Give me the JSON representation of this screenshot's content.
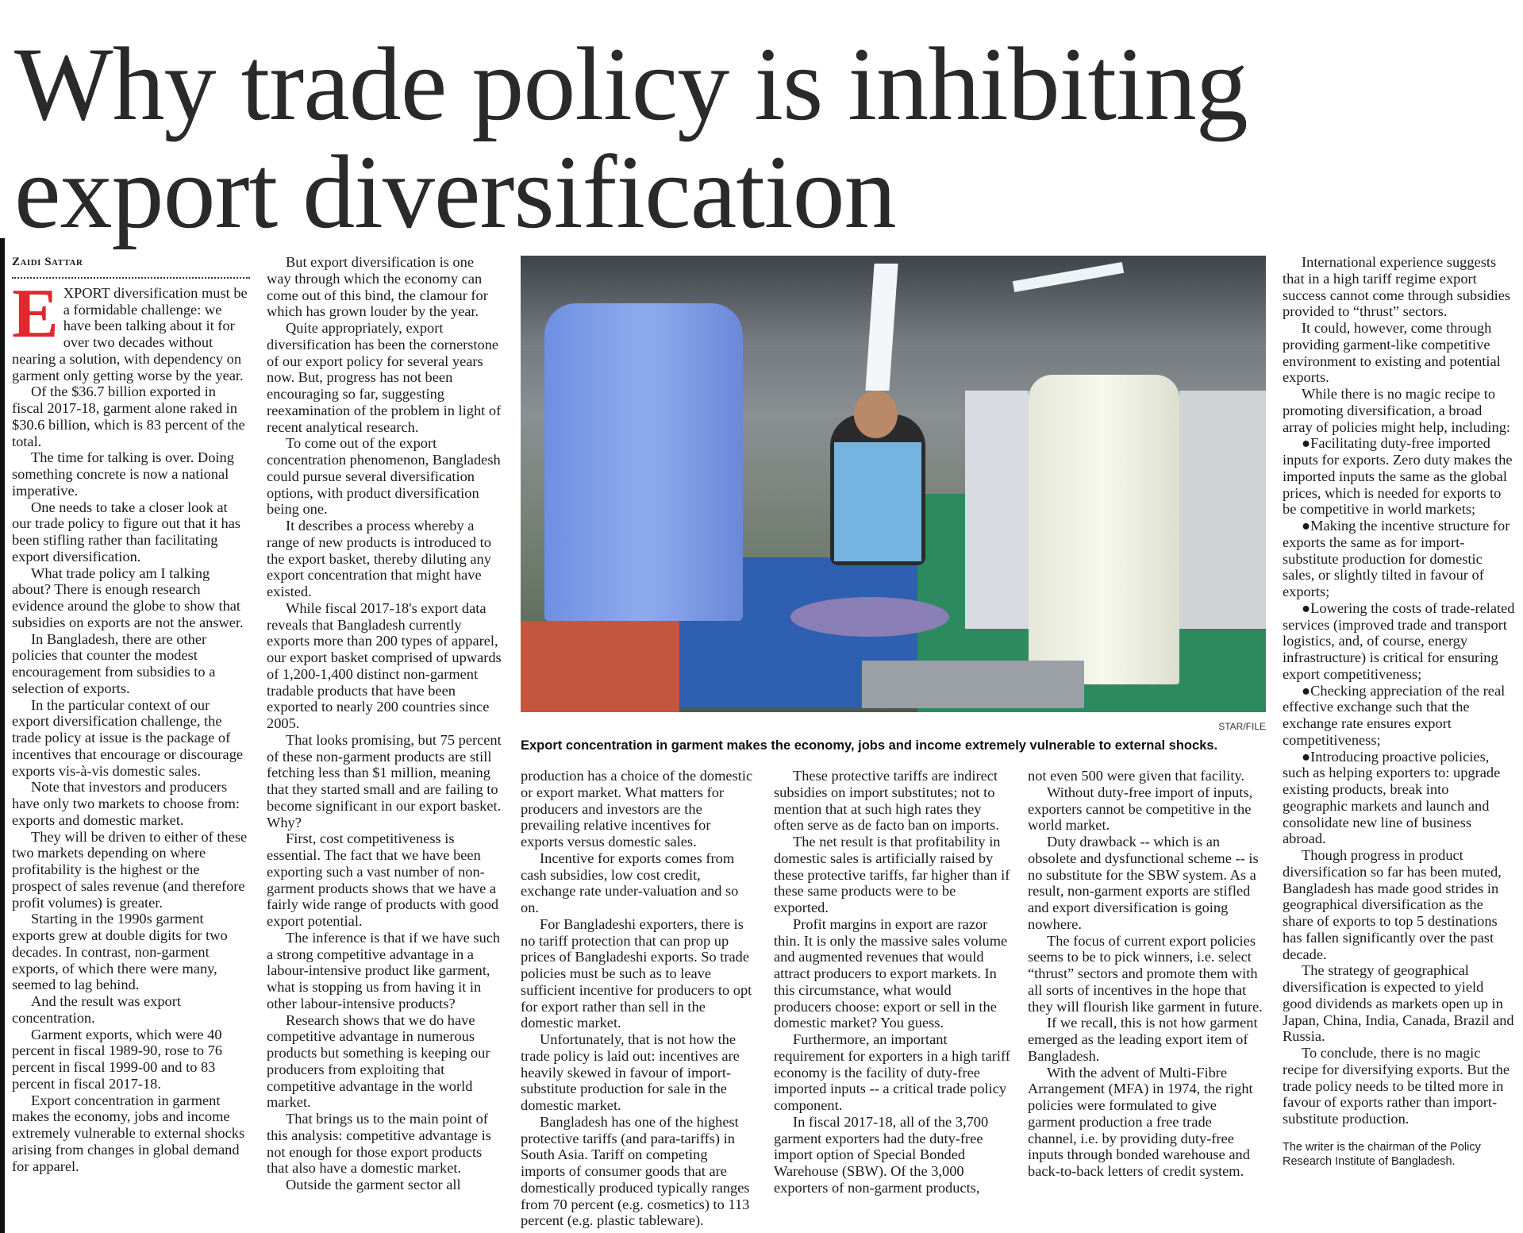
{
  "headline": [
    "Why trade policy is inhibiting",
    "export diversification"
  ],
  "byline": "Zaidi Sattar",
  "dropcap": "E",
  "photo": {
    "credit": "STAR/FILE",
    "caption": "Export concentration in garment makes the economy, jobs and income extremely vulnerable to external shocks."
  },
  "columns": [
    {
      "paragraphs": [
        "XPORT diversification must be a formidable challenge: we have been talking about it for over two decades without nearing a solution, with dependency on garment only getting worse by the year.",
        "Of the $36.7 billion exported in fiscal 2017-18, garment alone raked in $30.6 billion, which is 83 percent of the total.",
        "The time for talking is over. Doing something concrete is now a national imperative.",
        "One needs to take a closer look at our trade policy to figure out that it has been stifling rather than facilitating export diversification.",
        "What trade policy am I talking about? There is enough research evidence around the globe to show that subsidies on exports are not the answer.",
        "In Bangladesh, there are other policies that counter the modest encouragement from subsidies to a selection of exports.",
        "In the particular context of our export diversification challenge, the trade policy at issue is the package of incentives that encourage or discourage exports vis-à-vis domestic sales.",
        "Note that investors and producers have only two markets to choose from: exports and domestic market.",
        "They will be driven to either of these two markets depending on where profitability is the highest or the prospect of sales revenue (and therefore profit volumes) is greater.",
        "Starting in the 1990s garment exports grew at double digits for two decades. In contrast, non-garment exports, of which there were many, seemed to lag behind.",
        "And the result was export concentration.",
        "Garment exports, which were 40 percent in fiscal 1989-90, rose to 76 percent in fiscal 1999-00 and to 83 percent in fiscal 2017-18.",
        "Export concentration in garment makes the economy, jobs and income extremely vulnerable to external shocks arising from changes in global demand for apparel."
      ]
    },
    {
      "paragraphs": [
        "But export diversification is one way through which the economy can come out of this bind, the clamour for which has grown louder by the year.",
        "Quite appropriately, export diversification has been the cornerstone of our export policy for several years now. But, progress has not been encouraging so far, suggesting reexamination of the problem in light of recent analytical research.",
        "To come out of the export concentration phenomenon, Bangladesh could pursue several diversification options, with product diversification being one.",
        "It describes a process whereby a range of new products is introduced to the export basket, thereby diluting any export concentration that might have existed.",
        "While fiscal 2017-18's export data reveals that Bangladesh currently exports more than 200 types of apparel, our export basket comprised of upwards of 1,200-1,400 distinct non-garment tradable products that have been exported to nearly 200 countries since 2005.",
        "That looks promising, but 75 percent of these non-garment products are still fetching less than $1 million, meaning that they started small and are failing to become significant in our export basket. Why?",
        "First, cost competitiveness is essential. The fact that we have been exporting such a vast number of non-garment products shows that we have a fairly wide range of products with good export potential.",
        "The inference is that if we have such a strong competitive advantage in a labour-intensive product like garment, what is stopping us from having it in other labour-intensive products?",
        "Research shows that we do have competitive advantage in numerous products but something is keeping our producers from exploiting that competitive advantage in the world market.",
        "That brings us to the main point of this analysis: competitive advantage is not enough for those export products that also have a domestic market.",
        "Outside the garment sector all"
      ]
    },
    {
      "paragraphs": [
        "production has a choice of the domestic or export market. What matters for producers and investors are the prevailing relative incentives for exports versus domestic sales.",
        "Incentive for exports comes from cash subsidies, low cost credit, exchange rate under-valuation and so on.",
        "For Bangladeshi exporters, there is no tariff protection that can prop up prices of Bangladeshi exports. So trade policies must be such as to leave sufficient incentive for producers to opt for export rather than sell in the domestic market.",
        "Unfortunately, that is not how the trade policy is laid out: incentives are heavily skewed in favour of import-substitute production for sale in the domestic market.",
        "Bangladesh has one of the highest protective tariffs (and para-tariffs) in South Asia. Tariff on competing imports of consumer goods that are domestically produced typically ranges from 70 percent (e.g. cosmetics) to 113 percent (e.g. plastic tableware)."
      ]
    },
    {
      "paragraphs": [
        "These protective tariffs are indirect subsidies on import substitutes; not to mention that at such high rates they often serve as de facto ban on imports.",
        "The net result is that profitability in domestic sales is artificially raised by these protective tariffs, far higher than if these same products were to be exported.",
        "Profit margins in export are razor thin. It is only the massive sales volume and augmented revenues that would attract producers to export markets. In this circumstance, what would producers choose: export or sell in the domestic market? You guess.",
        "Furthermore, an important requirement for exporters in a high tariff economy is the facility of duty-free imported inputs -- a critical trade policy component.",
        "In fiscal 2017-18, all of the 3,700 garment exporters had the duty-free import option of Special Bonded Warehouse (SBW). Of the 3,000 exporters of non-garment products,"
      ]
    },
    {
      "paragraphs": [
        "not even 500 were given that facility.",
        "Without duty-free import of inputs, exporters cannot be competitive in the world market.",
        "Duty drawback -- which is an obsolete and dysfunctional scheme -- is no substitute for the SBW system. As a result, non-garment exports are stifled and export diversification is going nowhere.",
        "The focus of current export policies seems to be to pick winners, i.e. select “thrust” sectors and promote them with all sorts of incentives in the hope that they will flourish like garment in future.",
        "If we recall, this is not how garment emerged as the leading export item of Bangladesh.",
        "With the advent of Multi-Fibre Arrangement (MFA) in 1974, the right policies were formulated to give garment production a free trade channel, i.e. by providing duty-free inputs through bonded warehouse and back-to-back letters of credit system."
      ]
    },
    {
      "paragraphs": [
        "International experience suggests that in a high tariff regime export success cannot come through subsidies provided to “thrust” sectors.",
        "It could, however, come through providing garment-like competitive environment to existing and potential exports.",
        "While there is no magic recipe to promoting diversification, a broad array of policies might help, including:",
        "●Facilitating duty-free imported inputs for exports. Zero duty makes the imported inputs the same as the global prices, which is needed for exports to be competitive in world markets;",
        "●Making the incentive structure for exports the same as for import-substitute production for domestic sales, or slightly tilted in favour of exports;",
        "●Lowering the costs of trade-related services (improved trade and transport logistics, and, of course, energy infrastructure) is critical for ensuring export competitiveness;",
        "●Checking appreciation of the real effective exchange such that the exchange rate ensures export competitiveness;",
        "●Introducing proactive policies, such as helping exporters to: upgrade existing products, break into geographic markets and launch and consolidate new line of business abroad.",
        "Though progress in product diversification so far has been muted, Bangladesh has made good strides in geographical diversification as the share of exports to top 5 destinations has fallen significantly over the past decade.",
        "The strategy of geographical diversification is expected to yield good dividends as markets open up in Japan, China, India, Canada, Brazil and Russia.",
        "To conclude, there is no magic recipe for diversifying exports. But the trade policy needs to be tilted more in favour of exports rather than import-substitute production."
      ]
    }
  ],
  "footer": "The writer is the chairman of the Policy Research Institute of Bangladesh.",
  "colors": {
    "dropcap": "#e0282e",
    "headline": "#2a2a2a"
  }
}
